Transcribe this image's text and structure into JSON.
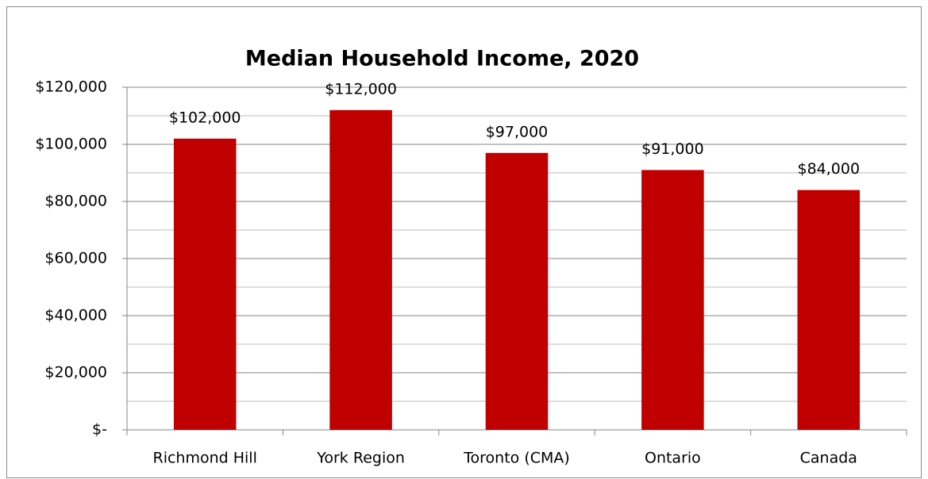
{
  "chart_data": {
    "type": "bar",
    "title": "Median Household Income, 2020",
    "categories": [
      "Richmond Hill",
      "York Region",
      "Toronto (CMA)",
      "Ontario",
      "Canada"
    ],
    "values": [
      102000,
      112000,
      97000,
      91000,
      84000
    ],
    "value_labels": [
      "$102,000",
      "$112,000",
      "$97,000",
      "$91,000",
      "$84,000"
    ],
    "color": "#c00000",
    "ylim": [
      0,
      120000
    ],
    "yticks": [
      {
        "value": 0,
        "label": "$-"
      },
      {
        "value": 20000,
        "label": "$20,000"
      },
      {
        "value": 40000,
        "label": "$40,000"
      },
      {
        "value": 60000,
        "label": "$60,000"
      },
      {
        "value": 80000,
        "label": "$80,000"
      },
      {
        "value": 100000,
        "label": "$100,000"
      },
      {
        "value": 120000,
        "label": "$120,000"
      }
    ],
    "minor_yticks": [
      10000,
      30000,
      50000,
      70000,
      90000,
      110000
    ],
    "grid": true
  }
}
